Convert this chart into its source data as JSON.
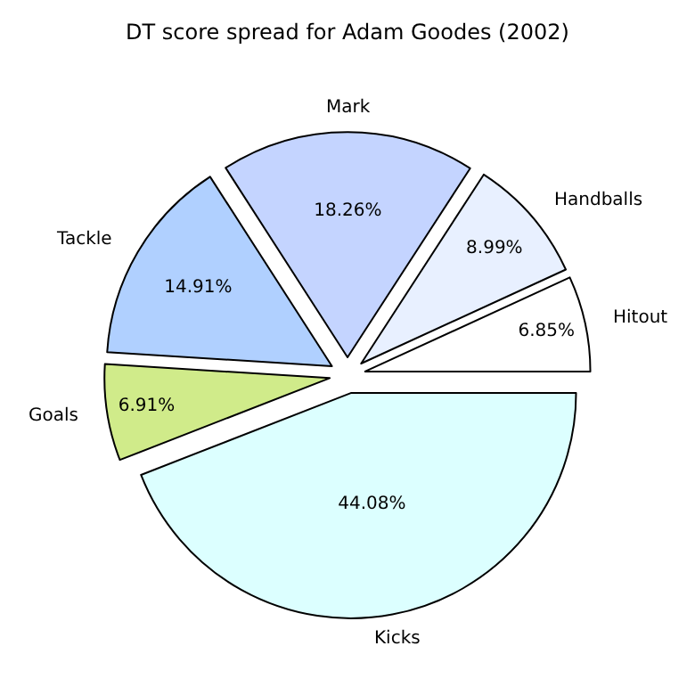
{
  "chart_data": {
    "type": "pie",
    "title": "DT score spread for Adam Goodes (2002)",
    "categories": [
      "Hitout",
      "Handballs",
      "Mark",
      "Tackle",
      "Goals",
      "Kicks"
    ],
    "values": [
      6.85,
      8.99,
      18.26,
      14.91,
      6.91,
      44.08
    ],
    "value_labels": [
      "6.85%",
      "8.99%",
      "18.26%",
      "14.91%",
      "6.91%",
      "44.08%"
    ],
    "colors": [
      "#ffffff",
      "#e8f0ff",
      "#c4d4ff",
      "#b0d0ff",
      "#d0eb8a",
      "#dcffff"
    ],
    "legend": false
  }
}
